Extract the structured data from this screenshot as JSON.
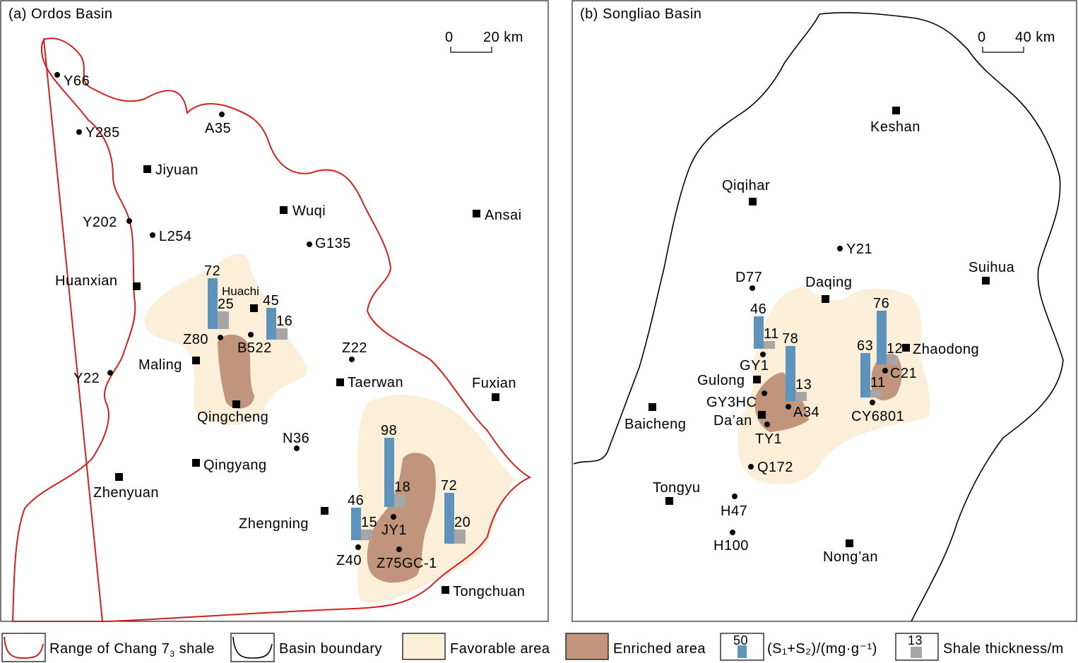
{
  "colors": {
    "favorable": "#fcefd9",
    "enriched": "#c0957c",
    "s1s2_bar": "#5e94bc",
    "thickness_bar": "#a6a6a6",
    "chang7_boundary": "#d0201f",
    "basin_boundary": "#000000"
  },
  "panel_a": {
    "title": "(a) Ordos Basin",
    "scale": {
      "zero": "0",
      "value": "20 km"
    },
    "cities": [
      "Jiyuan",
      "Wuqi",
      "Ansai",
      "Huanxian",
      "Huachi",
      "Maling",
      "Qingcheng",
      "Taerwan",
      "Fuxian",
      "Qingyang",
      "Zhenyuan",
      "Zhengning",
      "Tongchuan"
    ],
    "wells": [
      "Y66",
      "Y285",
      "A35",
      "Y202",
      "L254",
      "G135",
      "Z80",
      "B522",
      "Z22",
      "Y22",
      "N36",
      "JY1",
      "Z40",
      "Z75GC-1"
    ],
    "bars": [
      {
        "s1s2": 72,
        "thickness": 25
      },
      {
        "s1s2": 45,
        "thickness": 16
      },
      {
        "s1s2": 98,
        "thickness": 18
      },
      {
        "s1s2": 46,
        "thickness": 15
      },
      {
        "s1s2": 72,
        "thickness": 20
      }
    ]
  },
  "panel_b": {
    "title": "(b) Songliao Basin",
    "scale": {
      "zero": "0",
      "value": "40 km"
    },
    "cities": [
      "Keshan",
      "Qiqihar",
      "Suihua",
      "Daqing",
      "Zhaodong",
      "Gulong",
      "Da’an",
      "Baicheng",
      "Tongyu",
      "Nong’an"
    ],
    "wells": [
      "Y21",
      "D77",
      "GY1",
      "GY3HC",
      "A34",
      "TY1",
      "C21",
      "CY6801",
      "Q172",
      "H47",
      "H100"
    ],
    "bars": [
      {
        "s1s2": 46,
        "thickness": 11
      },
      {
        "s1s2": 78,
        "thickness": 13
      },
      {
        "s1s2": 63,
        "thickness": 11
      },
      {
        "s1s2": 76,
        "thickness": 12
      }
    ]
  },
  "legend": {
    "chang7": "Range of Chang 7",
    "chang7_sub": "3",
    "chang7_suffix": " shale",
    "basin": "Basin boundary",
    "favorable": "Favorable area",
    "enriched": "Enriched area",
    "s1s2_sample": "50",
    "s1s2_label": "(S₁+S₂)/(mg·g⁻¹)",
    "thickness_sample": "13",
    "thickness_label": "Shale thickness/m"
  }
}
